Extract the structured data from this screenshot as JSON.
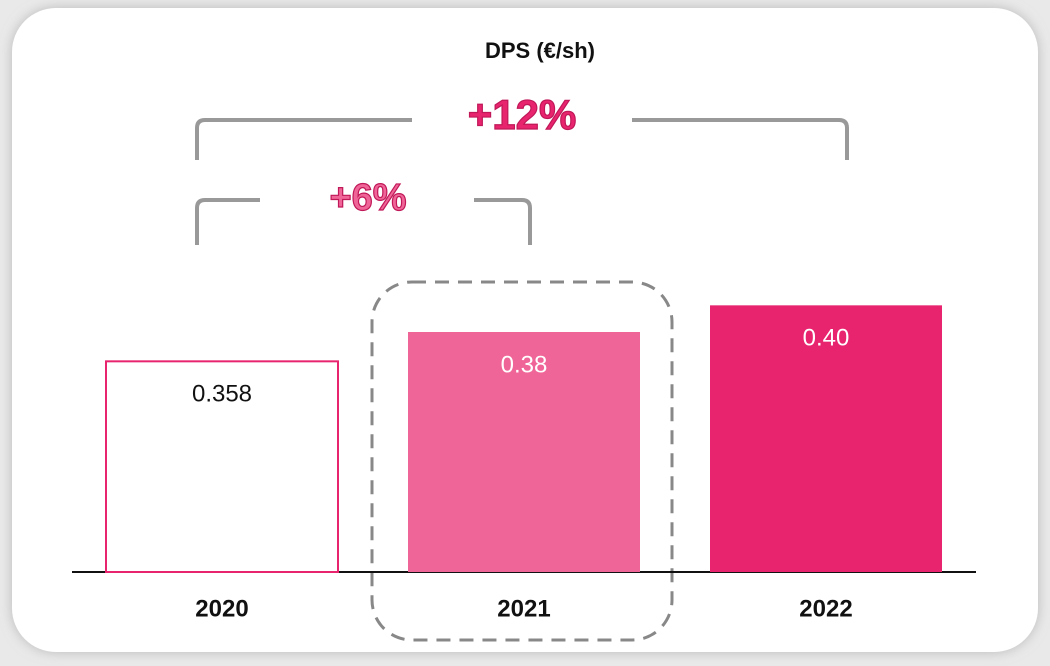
{
  "chart_data": {
    "type": "bar",
    "title": "DPS (€/sh)",
    "categories": [
      "2020",
      "2021",
      "2022"
    ],
    "values": [
      0.358,
      0.38,
      0.4
    ],
    "value_labels": [
      "0.358",
      "0.38",
      "0.40"
    ],
    "colors": [
      "#ffffff",
      "#f06597",
      "#e8246f"
    ],
    "edge_color": "#e8246f",
    "ylim": [
      0.2,
      0.5
    ],
    "annotations": [
      {
        "text": "+12%",
        "color": "#e8246f"
      },
      {
        "text": "+6%",
        "color": "#f06597"
      }
    ]
  }
}
